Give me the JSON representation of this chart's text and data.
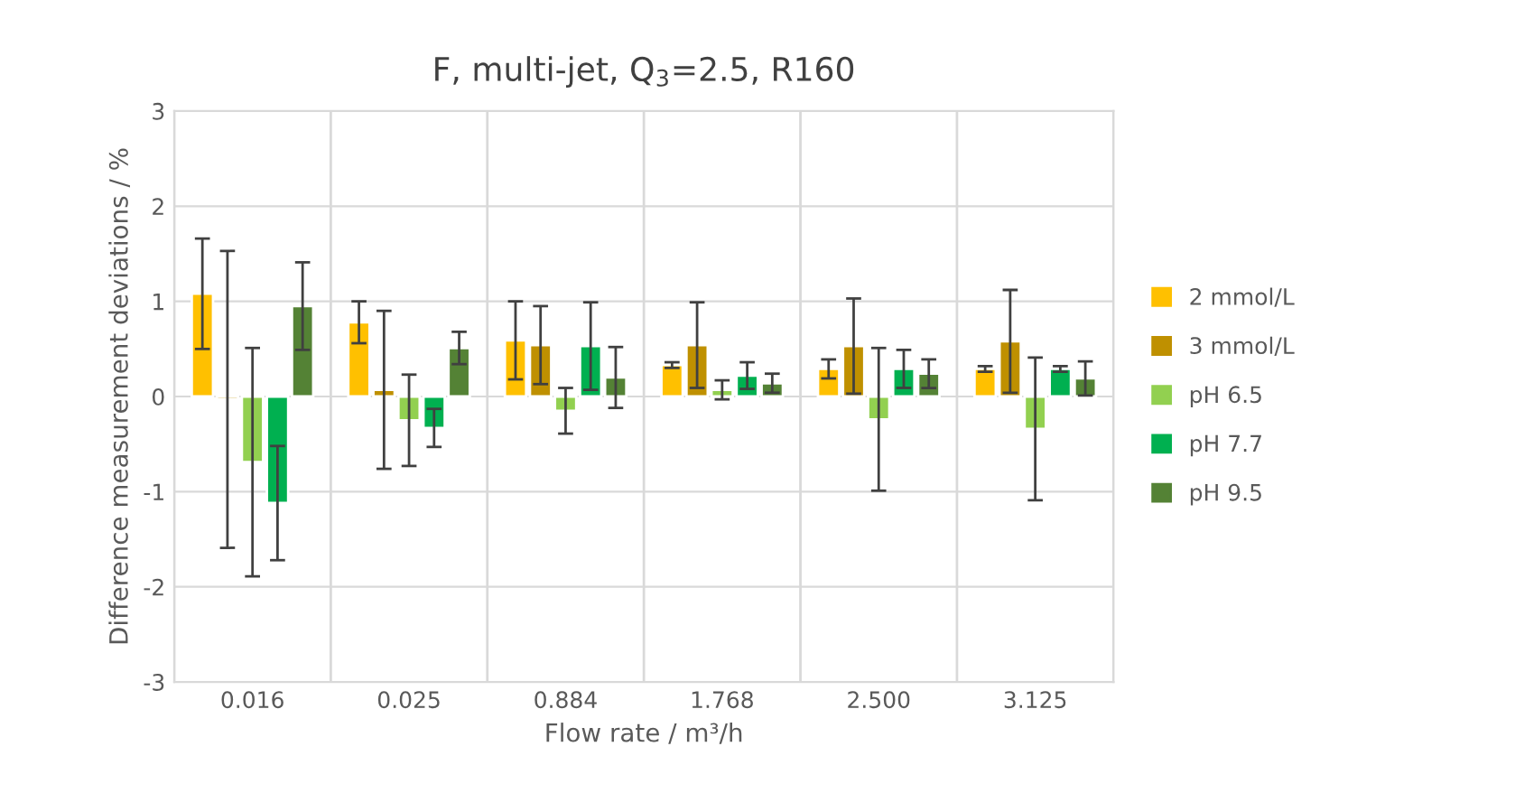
{
  "chart_data": {
    "type": "bar",
    "title": "F, multi-jet, Q$_{3}$=2.5, R160",
    "xlabel": "Flow rate / m³/h",
    "ylabel": "Difference measurement deviations / %",
    "categories": [
      "0.016",
      "0.025",
      "0.884",
      "1.768",
      "2.500",
      "3.125"
    ],
    "series": [
      {
        "name": "2 mmol/L",
        "color": "#ffc000",
        "values": [
          1.08,
          0.78,
          0.59,
          0.33,
          0.29,
          0.29
        ],
        "errors": [
          0.58,
          0.22,
          0.41,
          0.03,
          0.1,
          0.03
        ]
      },
      {
        "name": "3 mmol/L",
        "color": "#bf9000",
        "values": [
          -0.03,
          0.07,
          0.54,
          0.54,
          0.53,
          0.58
        ],
        "errors": [
          1.56,
          0.83,
          0.41,
          0.45,
          0.5,
          0.54
        ]
      },
      {
        "name": "pH 6.5",
        "color": "#92d050",
        "values": [
          -0.69,
          -0.25,
          -0.15,
          0.07,
          -0.24,
          -0.34
        ],
        "errors": [
          1.2,
          0.48,
          0.24,
          0.1,
          0.75,
          0.75
        ]
      },
      {
        "name": "pH 7.7",
        "color": "#00b050",
        "values": [
          -1.12,
          -0.33,
          0.53,
          0.22,
          0.29,
          0.29
        ],
        "errors": [
          0.6,
          0.2,
          0.46,
          0.14,
          0.2,
          0.03
        ]
      },
      {
        "name": "pH 9.5",
        "color": "#548235",
        "values": [
          0.95,
          0.51,
          0.2,
          0.14,
          0.24,
          0.19
        ],
        "errors": [
          0.46,
          0.17,
          0.32,
          0.1,
          0.15,
          0.18
        ]
      }
    ],
    "ylim": [
      -3,
      3
    ],
    "yticks": [
      -3,
      -2,
      -1,
      0,
      1,
      2,
      3
    ],
    "grid": true,
    "legend": "right"
  }
}
